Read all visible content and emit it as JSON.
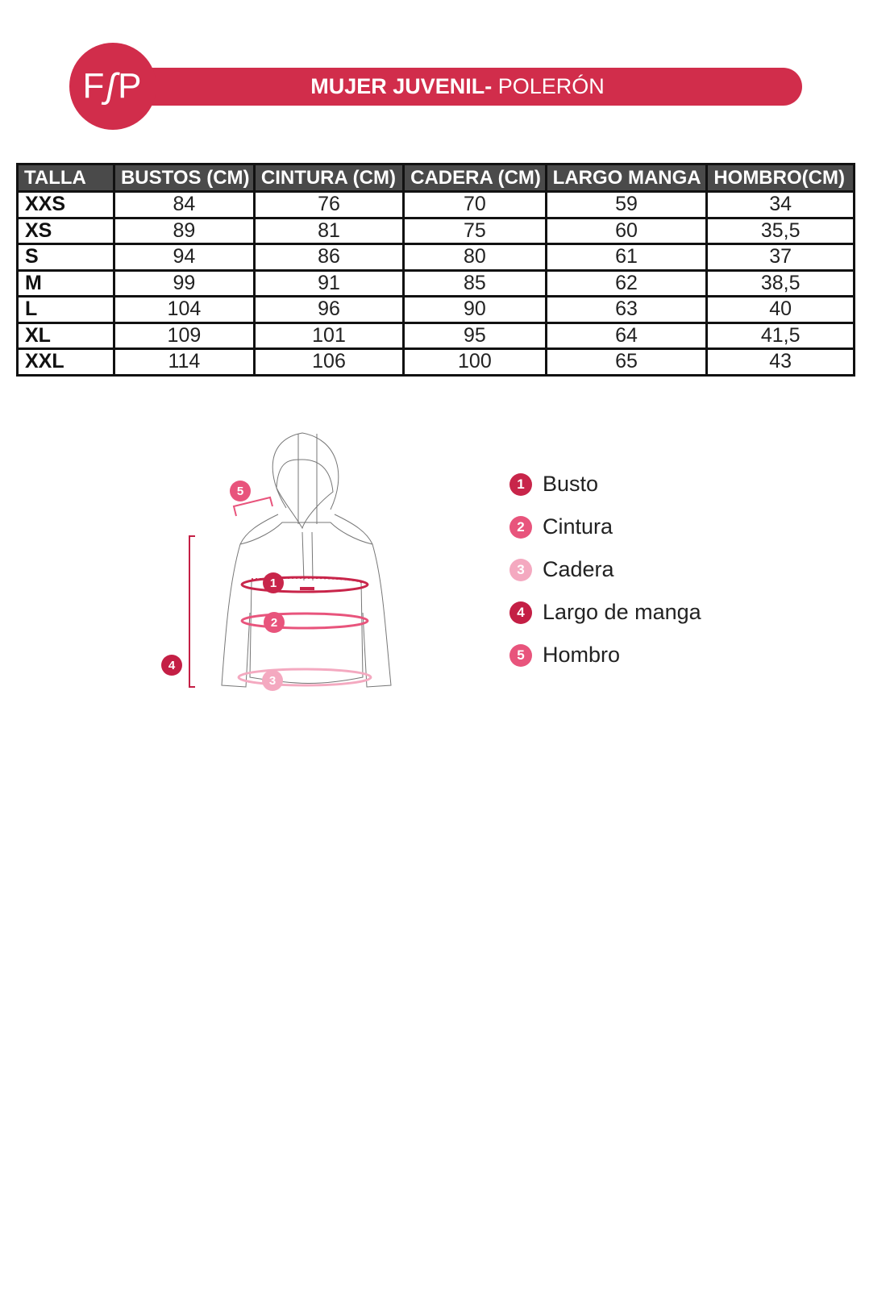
{
  "header": {
    "logo_text": "FSP",
    "title_bold": "MUJER JUVENIL-",
    "title_regular": " POLERÓN",
    "brand_color": "#d12d4b"
  },
  "table": {
    "columns": [
      "TALLA",
      "BUSTOS (CM)",
      "CINTURA (CM)",
      "CADERA (CM)",
      "LARGO MANGA",
      "HOMBRO(CM)"
    ],
    "rows": [
      [
        "XXS",
        "84",
        "76",
        "70",
        "59",
        "34"
      ],
      [
        "XS",
        "89",
        "81",
        "75",
        "60",
        "35,5"
      ],
      [
        "S",
        "94",
        "86",
        "80",
        "61",
        "37"
      ],
      [
        "M",
        "99",
        "91",
        "85",
        "62",
        "38,5"
      ],
      [
        "L",
        "104",
        "96",
        "90",
        "63",
        "40"
      ],
      [
        "XL",
        "109",
        "101",
        "95",
        "64",
        "41,5"
      ],
      [
        "XXL",
        "114",
        "106",
        "100",
        "65",
        "43"
      ]
    ]
  },
  "legend": [
    {
      "num": "1",
      "label": "Busto",
      "color": "#c8254a"
    },
    {
      "num": "2",
      "label": "Cintura",
      "color": "#e8547c"
    },
    {
      "num": "3",
      "label": "Cadera",
      "color": "#f4a9c0"
    },
    {
      "num": "4",
      "label": "Largo de manga",
      "color": "#c41f45"
    },
    {
      "num": "5",
      "label": "Hombro",
      "color": "#e8547c"
    }
  ]
}
